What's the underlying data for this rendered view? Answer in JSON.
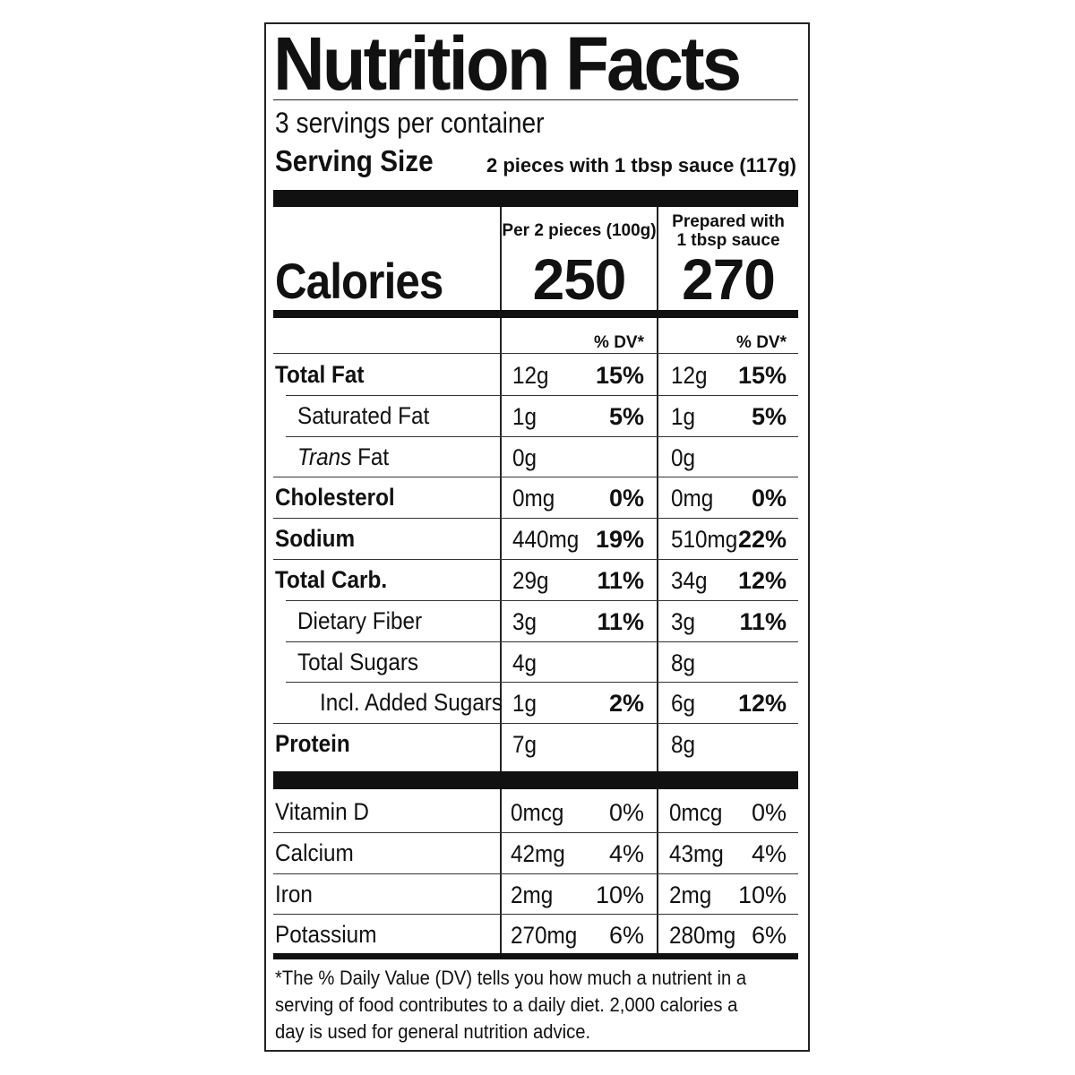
{
  "title": "Nutrition Facts",
  "servings_per_container": "3 servings per container",
  "serving_size_label": "Serving Size",
  "serving_size_value": "2 pieces with 1 tbsp sauce (117g)",
  "calories_label": "Calories",
  "columns": [
    {
      "header_line1": "Per 2 pieces (100g)",
      "header_line2": "",
      "calories": "250",
      "dv_label": "% DV*"
    },
    {
      "header_line1": "Prepared with",
      "header_line2": "1 tbsp sauce",
      "calories": "270",
      "dv_label": "% DV*"
    }
  ],
  "nutrients": [
    {
      "name": "Total Fat",
      "bold": true,
      "indent": 0,
      "c1_amount": "12g",
      "c1_dv": "15%",
      "c2_amount": "12g",
      "c2_dv": "15%"
    },
    {
      "name": "Saturated Fat",
      "bold": false,
      "indent": 1,
      "c1_amount": "1g",
      "c1_dv": "5%",
      "c2_amount": "1g",
      "c2_dv": "5%"
    },
    {
      "name_italic": "Trans",
      "name": " Fat",
      "bold": false,
      "indent": 1,
      "c1_amount": "0g",
      "c1_dv": "",
      "c2_amount": "0g",
      "c2_dv": ""
    },
    {
      "name": "Cholesterol",
      "bold": true,
      "indent": 0,
      "c1_amount": "0mg",
      "c1_dv": "0%",
      "c2_amount": "0mg",
      "c2_dv": "0%"
    },
    {
      "name": "Sodium",
      "bold": true,
      "indent": 0,
      "c1_amount": "440mg",
      "c1_dv": "19%",
      "c2_amount": "510mg",
      "c2_dv": "22%"
    },
    {
      "name": "Total Carb.",
      "bold": true,
      "indent": 0,
      "c1_amount": "29g",
      "c1_dv": "11%",
      "c2_amount": "34g",
      "c2_dv": "12%"
    },
    {
      "name": "Dietary Fiber",
      "bold": false,
      "indent": 1,
      "c1_amount": "3g",
      "c1_dv": "11%",
      "c2_amount": "3g",
      "c2_dv": "11%"
    },
    {
      "name": "Total Sugars",
      "bold": false,
      "indent": 1,
      "c1_amount": "4g",
      "c1_dv": "",
      "c2_amount": "8g",
      "c2_dv": ""
    },
    {
      "name": "Incl. Added Sugars",
      "bold": false,
      "indent": 2,
      "c1_amount": "1g",
      "c1_dv": "2%",
      "c2_amount": "6g",
      "c2_dv": "12%"
    },
    {
      "name": "Protein",
      "bold": true,
      "indent": 0,
      "c1_amount": "7g",
      "c1_dv": "",
      "c2_amount": "8g",
      "c2_dv": ""
    }
  ],
  "vitamins": [
    {
      "name": "Vitamin D",
      "c1_amount": "0mcg",
      "c1_dv": "0%",
      "c2_amount": "0mcg",
      "c2_dv": "0%"
    },
    {
      "name": "Calcium",
      "c1_amount": "42mg",
      "c1_dv": "4%",
      "c2_amount": "43mg",
      "c2_dv": "4%"
    },
    {
      "name": "Iron",
      "c1_amount": "2mg",
      "c1_dv": "10%",
      "c2_amount": "2mg",
      "c2_dv": "10%"
    },
    {
      "name": "Potassium",
      "c1_amount": "270mg",
      "c1_dv": "6%",
      "c2_amount": "280mg",
      "c2_dv": "6%"
    }
  ],
  "footnote": "*The % Daily Value (DV) tells you how much a nutrient in a serving of food contributes to a daily diet. 2,000 calories a day is used for general nutrition advice."
}
